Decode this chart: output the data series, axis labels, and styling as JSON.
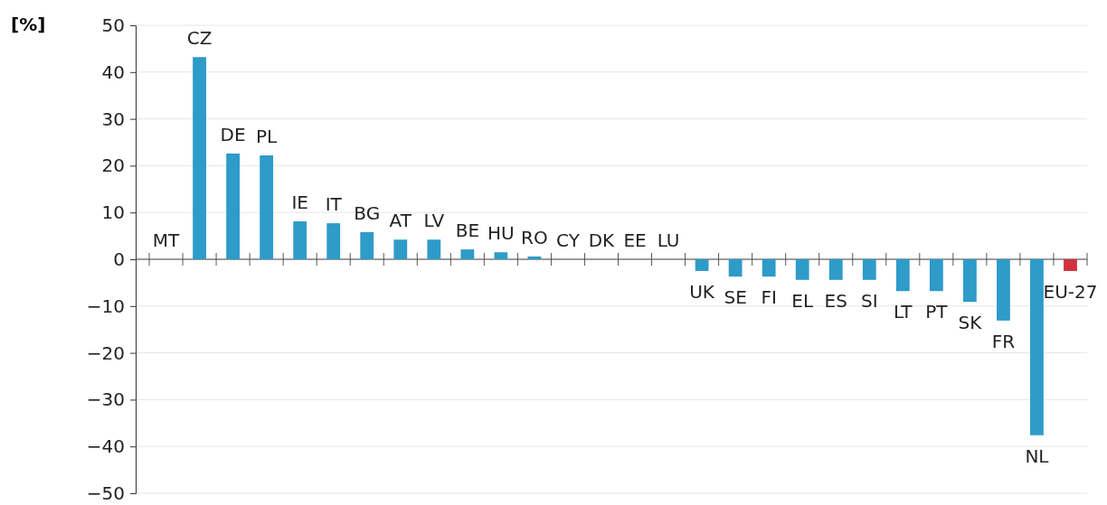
{
  "chart_data": {
    "type": "bar",
    "ylabel": "[%]",
    "categories": [
      "MT",
      "CZ",
      "DE",
      "PL",
      "IE",
      "IT",
      "BG",
      "AT",
      "LV",
      "BE",
      "HU",
      "RO",
      "CY",
      "DK",
      "EE",
      "LU",
      "UK",
      "SE",
      "FI",
      "EL",
      "ES",
      "SI",
      "LT",
      "PT",
      "SK",
      "FR",
      "NL",
      "EU-27"
    ],
    "values": [
      0,
      43.2,
      22.6,
      22.2,
      8.1,
      7.7,
      5.8,
      4.2,
      4.2,
      2.1,
      1.5,
      0.6,
      0,
      0,
      0,
      0,
      -2.5,
      -3.7,
      -3.7,
      -4.4,
      -4.4,
      -4.4,
      -6.8,
      -6.8,
      -9.1,
      -13.1,
      -37.6,
      -2.5
    ],
    "colors": [
      "#2e9bc9",
      "#2e9bc9",
      "#2e9bc9",
      "#2e9bc9",
      "#2e9bc9",
      "#2e9bc9",
      "#2e9bc9",
      "#2e9bc9",
      "#2e9bc9",
      "#2e9bc9",
      "#2e9bc9",
      "#2e9bc9",
      "#2e9bc9",
      "#2e9bc9",
      "#2e9bc9",
      "#2e9bc9",
      "#2e9bc9",
      "#2e9bc9",
      "#2e9bc9",
      "#2e9bc9",
      "#2e9bc9",
      "#2e9bc9",
      "#2e9bc9",
      "#2e9bc9",
      "#2e9bc9",
      "#2e9bc9",
      "#2e9bc9",
      "#d0323f"
    ],
    "ylim": [
      -50,
      50
    ],
    "yticks": [
      -50,
      -40,
      -30,
      -20,
      -10,
      0,
      10,
      20,
      30,
      40,
      50
    ],
    "grid": "y"
  }
}
